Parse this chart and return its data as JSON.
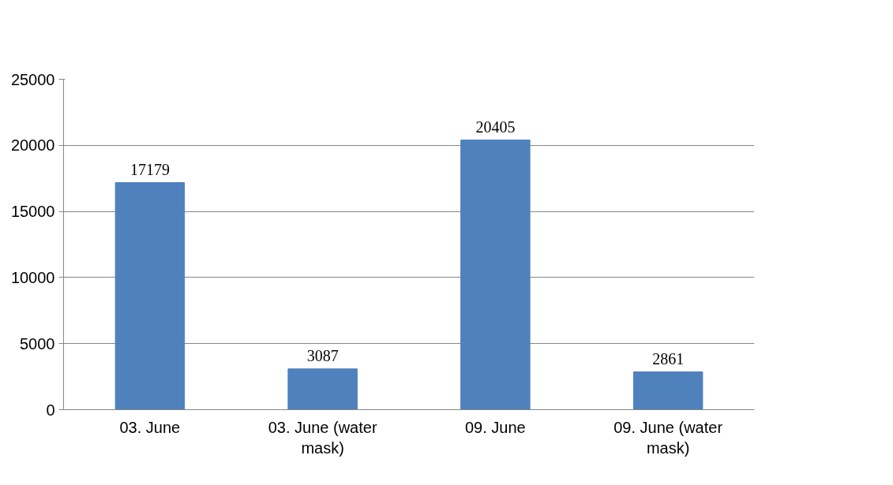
{
  "chart_data": {
    "type": "bar",
    "categories": [
      "03. June",
      "03. June (water mask)",
      "09. June",
      "09. June (water mask)"
    ],
    "values": [
      17179,
      3087,
      20405,
      2861
    ],
    "color": "#4f81bd",
    "ylim": [
      0,
      25000
    ],
    "yticks": [
      0,
      5000,
      10000,
      15000,
      20000,
      25000
    ],
    "grid": "y",
    "data_labels": true,
    "legend": false
  }
}
